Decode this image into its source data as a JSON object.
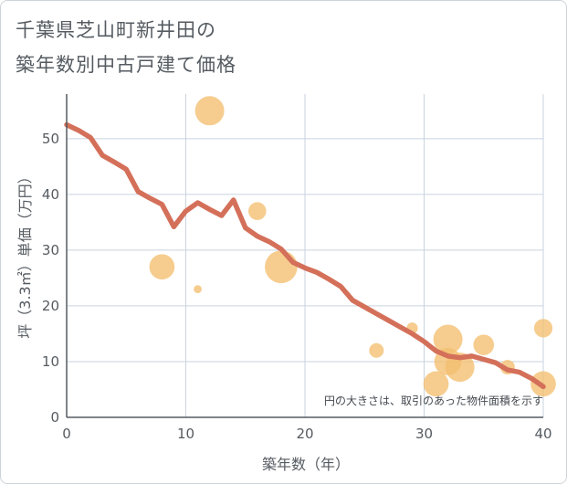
{
  "title_line1": "千葉県芝山町新井田の",
  "title_line2": "築年数別中古戸建て価格",
  "chart_data": {
    "type": "scatter+line",
    "title": "千葉県芝山町新井田の築年数別中古戸建て価格",
    "xlabel": "築年数（年）",
    "ylabel": "坪（3.3㎡）単価（万円）",
    "xlim": [
      0,
      40
    ],
    "ylim": [
      0,
      58
    ],
    "xticks": [
      0,
      10,
      20,
      30,
      40
    ],
    "yticks": [
      0,
      10,
      20,
      30,
      40,
      50
    ],
    "grid": true,
    "note": "円の大きさは、取引のあった物件面積を示す",
    "colors": {
      "bubble": "#f4bf6f",
      "line": "#d4705a",
      "grid": "#c9d3df",
      "axis": "#555b61"
    },
    "scatter": [
      {
        "x": 8,
        "y": 27,
        "size": 3
      },
      {
        "x": 11,
        "y": 23,
        "size": 0.3
      },
      {
        "x": 12,
        "y": 55,
        "size": 4
      },
      {
        "x": 16,
        "y": 37,
        "size": 1.5
      },
      {
        "x": 18,
        "y": 27,
        "size": 5
      },
      {
        "x": 26,
        "y": 12,
        "size": 1
      },
      {
        "x": 29,
        "y": 16,
        "size": 0.6
      },
      {
        "x": 31,
        "y": 6,
        "size": 3
      },
      {
        "x": 32,
        "y": 14,
        "size": 4
      },
      {
        "x": 32,
        "y": 10,
        "size": 3.5
      },
      {
        "x": 33,
        "y": 9,
        "size": 4
      },
      {
        "x": 35,
        "y": 13,
        "size": 2
      },
      {
        "x": 37,
        "y": 9,
        "size": 1
      },
      {
        "x": 40,
        "y": 16,
        "size": 1.6
      },
      {
        "x": 40,
        "y": 6,
        "size": 3
      }
    ],
    "line": {
      "x": [
        0,
        1,
        2,
        3,
        4,
        5,
        6,
        7,
        8,
        9,
        10,
        11,
        12,
        13,
        14,
        15,
        16,
        17,
        18,
        19,
        20,
        21,
        22,
        23,
        24,
        25,
        26,
        27,
        28,
        29,
        30,
        31,
        32,
        33,
        34,
        35,
        36,
        37,
        38,
        39,
        40
      ],
      "y": [
        52.5,
        51.5,
        50.2,
        47,
        45.8,
        44.5,
        40.5,
        39.3,
        38.2,
        34.2,
        37,
        38.5,
        37.3,
        36.2,
        39,
        34,
        32.5,
        31.5,
        30.2,
        27.8,
        26.8,
        26,
        24.8,
        23.5,
        21,
        19.8,
        18.6,
        17.4,
        16.2,
        15,
        13.6,
        11.9,
        11,
        10.7,
        11,
        10.4,
        9.8,
        8.5,
        8.1,
        7,
        5.5
      ]
    }
  }
}
